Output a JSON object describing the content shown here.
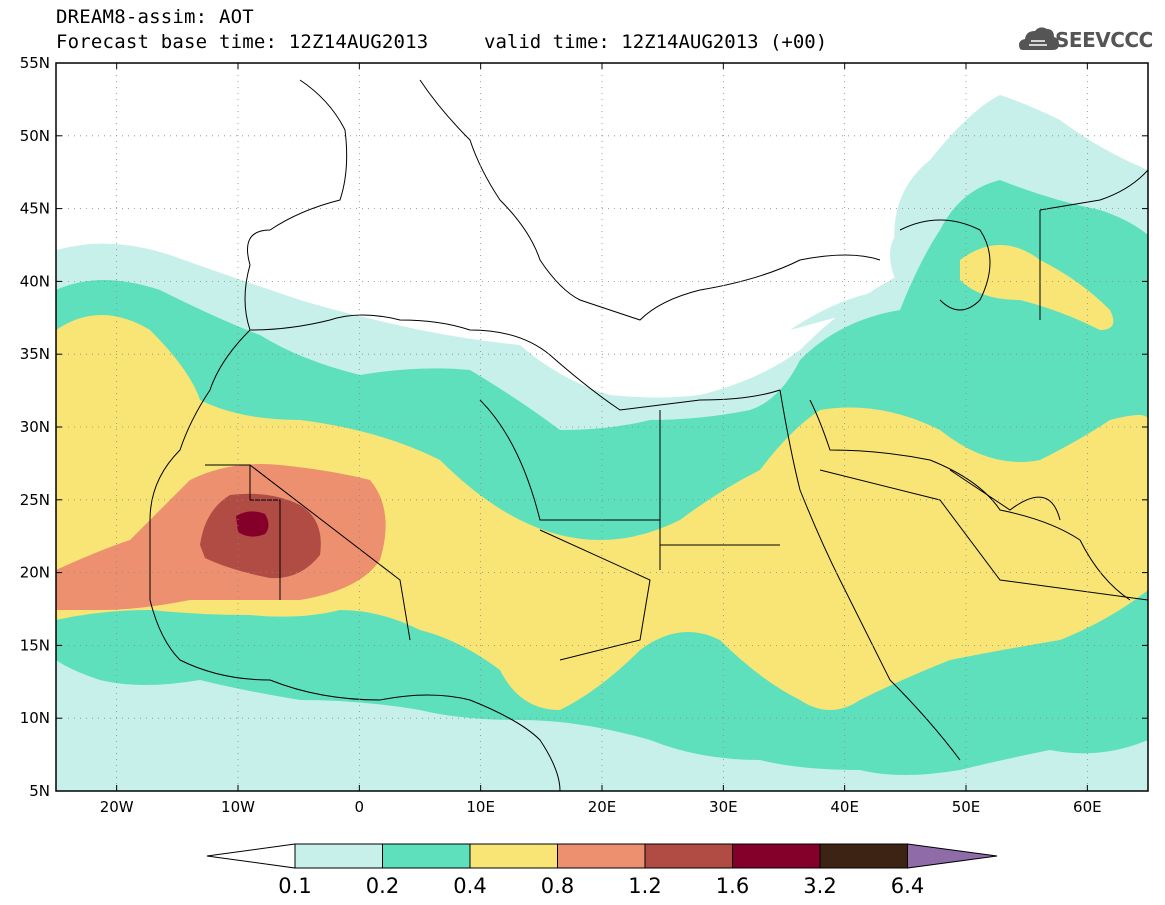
{
  "header": {
    "title": "DREAM8-assim: AOT",
    "base_time": "Forecast base time: 12Z14AUG2013",
    "valid_time": "valid time: 12Z14AUG2013 (+00)",
    "logo_text": "SEEVCCC"
  },
  "map": {
    "lat_labels": [
      "55N",
      "50N",
      "45N",
      "40N",
      "35N",
      "30N",
      "25N",
      "20N",
      "15N",
      "10N",
      "5N"
    ],
    "lon_labels": [
      "20W",
      "10W",
      "0",
      "10E",
      "20E",
      "30E",
      "40E",
      "50E",
      "60E"
    ],
    "lat_range": [
      5,
      55
    ],
    "lon_range": [
      -25,
      65
    ]
  },
  "colorbar": {
    "levels": [
      "0.1",
      "0.2",
      "0.4",
      "0.8",
      "1.2",
      "1.6",
      "3.2",
      "6.4"
    ],
    "colors": [
      "#c6f0e9",
      "#5ee0bd",
      "#f8e576",
      "#ec9070",
      "#b04c43",
      "#84002a",
      "#3d2314",
      "#8f6ba8"
    ],
    "below_color": "#ffffff"
  }
}
